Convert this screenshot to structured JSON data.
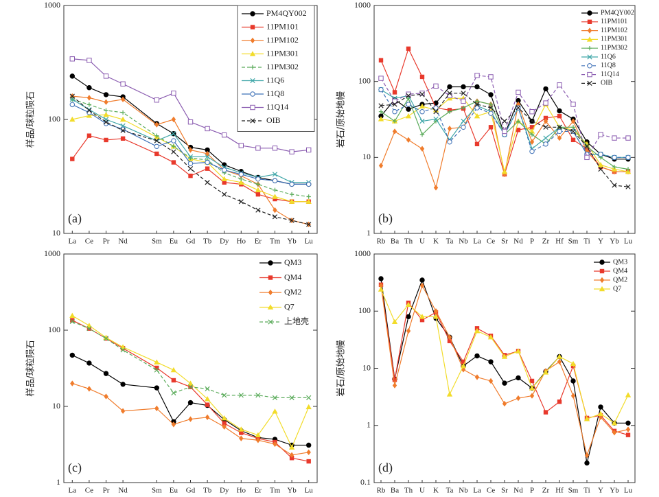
{
  "chart_data": [
    {
      "type": "line",
      "ylabel": "样品/球粒陨石",
      "annotation": "(a)",
      "log_y": true,
      "legend": "upper right",
      "categories": [
        "La",
        "Ce",
        "Pr",
        "Nd",
        "Sm",
        "Eu",
        "Gd",
        "Tb",
        "Dy",
        "Ho",
        "Er",
        "Tm",
        "Yb",
        "Lu"
      ],
      "ylim": [
        10,
        1000
      ],
      "yticks": [
        10,
        100,
        1000
      ],
      "series": [
        {
          "name": "PM4QY002",
          "color": "#000000",
          "marker": "circle",
          "dashed": false,
          "values": [
            240,
            190,
            165,
            158,
            92,
            75,
            57,
            54,
            40,
            35,
            31,
            29,
            27,
            27
          ]
        },
        {
          "name": "11PM101",
          "color": "#e8392c",
          "marker": "square",
          "dashed": false,
          "values": [
            45,
            72,
            66,
            68,
            50,
            42,
            32,
            37,
            28,
            27,
            22,
            20,
            19,
            19
          ]
        },
        {
          "name": "11PM102",
          "color": "#f07c2c",
          "marker": "diamond",
          "dashed": false,
          "values": [
            160,
            155,
            142,
            150,
            90,
            100,
            54,
            50,
            36,
            32,
            27,
            16,
            13,
            12
          ]
        },
        {
          "name": "11PM301",
          "color": "#f2dc2a",
          "marker": "triangle",
          "dashed": false,
          "values": [
            100,
            108,
            110,
            100,
            70,
            58,
            45,
            42,
            30,
            28,
            24,
            21,
            19,
            19
          ]
        },
        {
          "name": "11PM302",
          "color": "#5aab5a",
          "marker": "plus",
          "dashed": true,
          "values": [
            150,
            135,
            120,
            115,
            72,
            58,
            46,
            44,
            34,
            30,
            27,
            24,
            22,
            21
          ]
        },
        {
          "name": "11Q6",
          "color": "#3fa6a8",
          "marker": "x",
          "dashed": false,
          "values": [
            150,
            122,
            100,
            88,
            65,
            75,
            47,
            47,
            38,
            34,
            31,
            33,
            28,
            28
          ]
        },
        {
          "name": "11Q8",
          "color": "#3b6fb6",
          "marker": "circle-open",
          "dashed": false,
          "values": [
            135,
            115,
            92,
            82,
            58,
            65,
            41,
            42,
            36,
            33,
            30,
            29,
            27,
            27
          ]
        },
        {
          "name": "11Q14",
          "color": "#8a5bb0",
          "marker": "square-open",
          "dashed": false,
          "values": [
            340,
            330,
            240,
            205,
            148,
            170,
            95,
            83,
            73,
            59,
            56,
            56,
            52,
            54
          ]
        },
        {
          "name": "OIB",
          "color": "#222222",
          "marker": "x",
          "dashed": true,
          "values": [
            160,
            120,
            95,
            80,
            65,
            52,
            37,
            28,
            22,
            19,
            16,
            14,
            13,
            12
          ]
        }
      ]
    },
    {
      "type": "line",
      "ylabel": "岩石/原始地幔",
      "annotation": "(b)",
      "log_y": true,
      "legend": "upper right",
      "categories": [
        "Rb",
        "Ba",
        "Th",
        "U",
        "K",
        "Ta",
        "Nb",
        "La",
        "Ce",
        "Sr",
        "Nd",
        "P",
        "Zr",
        "Hf",
        "Sm",
        "Ti",
        "Y",
        "Yb",
        "Lu"
      ],
      "ylim": [
        1,
        1000
      ],
      "yticks": [
        1,
        10,
        100,
        1000
      ],
      "series": [
        {
          "name": "PM4QY002",
          "color": "#000000",
          "marker": "circle",
          "dashed": false,
          "values": [
            35,
            58,
            43,
            50,
            52,
            85,
            85,
            85,
            67,
            20,
            56,
            30,
            80,
            41,
            32,
            16,
            11,
            9.5,
            9.5
          ]
        },
        {
          "name": "11PM101",
          "color": "#e8392c",
          "marker": "square",
          "dashed": false,
          "values": [
            190,
            72,
            270,
            115,
            45,
            42,
            44,
            15,
            25,
            6,
            23,
            25,
            33,
            35,
            17,
            13,
            7.5,
            6.5,
            6.5
          ]
        },
        {
          "name": "11PM102",
          "color": "#f07c2c",
          "marker": "diamond",
          "dashed": false,
          "values": [
            7.8,
            22,
            17,
            13,
            4,
            24,
            25,
            55,
            50,
            6,
            50,
            16,
            30,
            18,
            30,
            12,
            7.5,
            6.5,
            6.5
          ]
        },
        {
          "name": "11PM301",
          "color": "#f2dc2a",
          "marker": "triangle",
          "dashed": false,
          "values": [
            32,
            30,
            35,
            47,
            42,
            60,
            60,
            35,
            40,
            6.5,
            30,
            22,
            50,
            25,
            23,
            15,
            8,
            7,
            6.5
          ]
        },
        {
          "name": "11PM302",
          "color": "#5aab5a",
          "marker": "plus",
          "dashed": false,
          "values": [
            40,
            30,
            60,
            20,
            30,
            40,
            45,
            55,
            50,
            20,
            30,
            20,
            15,
            25,
            25,
            14,
            10,
            7.5,
            7
          ]
        },
        {
          "name": "11Q6",
          "color": "#3fa6a8",
          "marker": "x",
          "dashed": false,
          "values": [
            78,
            60,
            65,
            30,
            32,
            17,
            30,
            48,
            40,
            20,
            45,
            13,
            18,
            25,
            22,
            11,
            11,
            10,
            10
          ]
        },
        {
          "name": "11Q8",
          "color": "#3b6fb6",
          "marker": "circle-open",
          "dashed": true,
          "values": [
            78,
            40,
            50,
            40,
            45,
            16,
            25,
            45,
            38,
            20,
            45,
            12,
            15,
            22,
            22,
            11,
            11,
            10,
            10
          ]
        },
        {
          "name": "11Q14",
          "color": "#8a5bb0",
          "marker": "square-open",
          "dashed": true,
          "values": [
            110,
            55,
            68,
            70,
            87,
            65,
            55,
            120,
            115,
            22,
            72,
            40,
            52,
            90,
            50,
            10,
            20,
            18,
            18
          ]
        },
        {
          "name": "OIB",
          "color": "#222222",
          "marker": "x",
          "dashed": true,
          "values": [
            48,
            50,
            65,
            68,
            40,
            70,
            70,
            50,
            45,
            30,
            45,
            30,
            25,
            25,
            22,
            14,
            7,
            4.3,
            4.1
          ]
        }
      ]
    },
    {
      "type": "line",
      "ylabel": "样品/球粒陨石",
      "annotation": "(c)",
      "log_y": true,
      "legend": "upper right",
      "categories": [
        "La",
        "Ce",
        "Pr",
        "Nd",
        "Sm",
        "Eu",
        "Gd",
        "Tb",
        "Dy",
        "Ho",
        "Er",
        "Tm",
        "Yb",
        "Lu"
      ],
      "ylim": [
        1,
        1000
      ],
      "yticks": [
        1,
        10,
        100,
        1000
      ],
      "series": [
        {
          "name": "QM3",
          "color": "#000000",
          "marker": "circle",
          "dashed": false,
          "values": [
            47,
            37,
            27,
            19.5,
            17.5,
            6.3,
            11.2,
            10.3,
            6.7,
            4.8,
            3.9,
            3.7,
            3.1,
            3.1
          ]
        },
        {
          "name": "QM4",
          "color": "#e8392c",
          "marker": "square",
          "dashed": false,
          "values": [
            135,
            105,
            78,
            58,
            32,
            22,
            18,
            10.5,
            6.0,
            4.5,
            3.8,
            3.4,
            2.1,
            1.9
          ]
        },
        {
          "name": "QM2",
          "color": "#f07c2c",
          "marker": "diamond",
          "dashed": false,
          "values": [
            20,
            17,
            13.5,
            8.7,
            9.4,
            5.8,
            6.8,
            7.2,
            5.4,
            3.8,
            3.6,
            3.2,
            2.3,
            2.5
          ]
        },
        {
          "name": "Q7",
          "color": "#f2dc2a",
          "marker": "triangle",
          "dashed": false,
          "values": [
            155,
            115,
            80,
            60,
            38,
            30,
            20,
            12.5,
            7,
            5,
            4.2,
            8.6,
            2.9,
            9.8
          ]
        },
        {
          "name": "上地壳",
          "color": "#5aab5a",
          "marker": "x",
          "dashed": true,
          "values": [
            130,
            105,
            78,
            55,
            30,
            15,
            18,
            17,
            14,
            14,
            14,
            13,
            13,
            13
          ]
        }
      ]
    },
    {
      "type": "line",
      "ylabel": "岩石/原始地幔",
      "annotation": "(d)",
      "log_y": true,
      "legend": "upper right",
      "categories": [
        "Rb",
        "Ba",
        "Th",
        "U",
        "K",
        "Ta",
        "Nb",
        "La",
        "Ce",
        "Sr",
        "Nd",
        "P",
        "Zr",
        "Hf",
        "Sm",
        "Ti",
        "Y",
        "Yb",
        "Lu"
      ],
      "ylim": [
        0.1,
        1000
      ],
      "yticks": [
        0.1,
        1,
        10,
        100,
        1000
      ],
      "series": [
        {
          "name": "QM3",
          "color": "#000000",
          "marker": "circle",
          "dashed": false,
          "values": [
            370,
            6.5,
            80,
            350,
            75,
            35,
            11,
            16.5,
            13,
            5.5,
            6.8,
            4.5,
            8.8,
            16,
            6,
            0.22,
            2.1,
            1.1,
            1.1
          ]
        },
        {
          "name": "QM4",
          "color": "#e8392c",
          "marker": "square",
          "dashed": false,
          "values": [
            290,
            6.3,
            140,
            70,
            95,
            30,
            13,
            50,
            37,
            17,
            20,
            6,
            1.7,
            2.6,
            11,
            1.35,
            1.5,
            0.8,
            0.68
          ]
        },
        {
          "name": "QM2",
          "color": "#f07c2c",
          "marker": "diamond",
          "dashed": false,
          "values": [
            280,
            5,
            45,
            280,
            100,
            35,
            9.5,
            7,
            6,
            2.4,
            3,
            3.3,
            9,
            13,
            3.3,
            0.3,
            1.4,
            0.75,
            0.85
          ]
        },
        {
          "name": "Q7",
          "color": "#f2dc2a",
          "marker": "triangle",
          "dashed": false,
          "values": [
            240,
            65,
            130,
            80,
            80,
            3.5,
            11,
            45,
            35,
            16,
            20,
            4.5,
            8.5,
            16,
            12,
            1.3,
            1.6,
            1.1,
            3.4
          ]
        }
      ]
    }
  ]
}
